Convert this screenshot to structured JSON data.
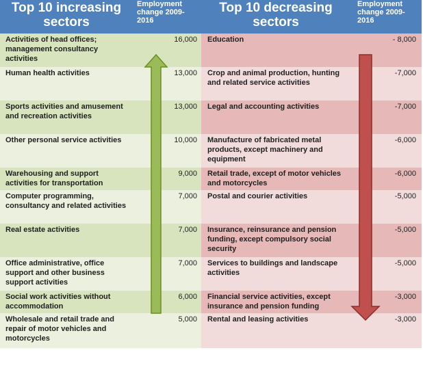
{
  "increasing": {
    "title": "Top 10 increasing sectors",
    "column_header": "Employment change 2009-2016",
    "arrow_color": "#9bbb59",
    "rows": [
      {
        "sector": "Activities of head offices; management consultancy activities",
        "change": "16,000"
      },
      {
        "sector": "Human health activities",
        "change": "13,000"
      },
      {
        "sector": "Sports activities and amusement and recreation activities",
        "change": "13,000"
      },
      {
        "sector": "Other personal service activities",
        "change": "10,000"
      },
      {
        "sector": "Warehousing and support activities for transportation",
        "change": "9,000"
      },
      {
        "sector": "Computer programming, consultancy and related activities",
        "change": "7,000"
      },
      {
        "sector": "Real estate activities",
        "change": "7,000"
      },
      {
        "sector": "Office administrative, office support and other business support activities",
        "change": "7,000"
      },
      {
        "sector": "Social work activities without accommodation",
        "change": "6,000"
      },
      {
        "sector": "Wholesale and retail trade and repair of motor vehicles and motorcycles",
        "change": "5,000"
      }
    ]
  },
  "decreasing": {
    "title": "Top 10 decreasing sectors",
    "column_header": "Employment change 2009-2016",
    "arrow_color": "#c0504d",
    "rows": [
      {
        "sector": "Education",
        "change": "- 8,000"
      },
      {
        "sector": "Crop and animal production, hunting and related service activities",
        "change": "-7,000"
      },
      {
        "sector": "Legal and accounting activities",
        "change": "-7,000"
      },
      {
        "sector": "Manufacture of fabricated metal products, except machinery and equipment",
        "change": "-6,000"
      },
      {
        "sector": "Retail trade, except of motor vehicles and motorcycles",
        "change": "-6,000"
      },
      {
        "sector": "Postal and courier activities",
        "change": "-5,000"
      },
      {
        "sector": "Insurance, reinsurance and pension funding, except compulsory social security",
        "change": "-5,000"
      },
      {
        "sector": "Services to buildings and landscape activities",
        "change": "-5,000"
      },
      {
        "sector": "Financial service activities, except insurance and pension funding",
        "change": "-3,000"
      },
      {
        "sector": "Rental and leasing activities",
        "change": "-3,000"
      }
    ]
  },
  "colors": {
    "header": "#4f81bd",
    "increasing_band": "#d7e4bd",
    "increasing_background": "#ebf1de",
    "decreasing_band": "#e6b9b8",
    "decreasing_background": "#f2dcdb"
  }
}
